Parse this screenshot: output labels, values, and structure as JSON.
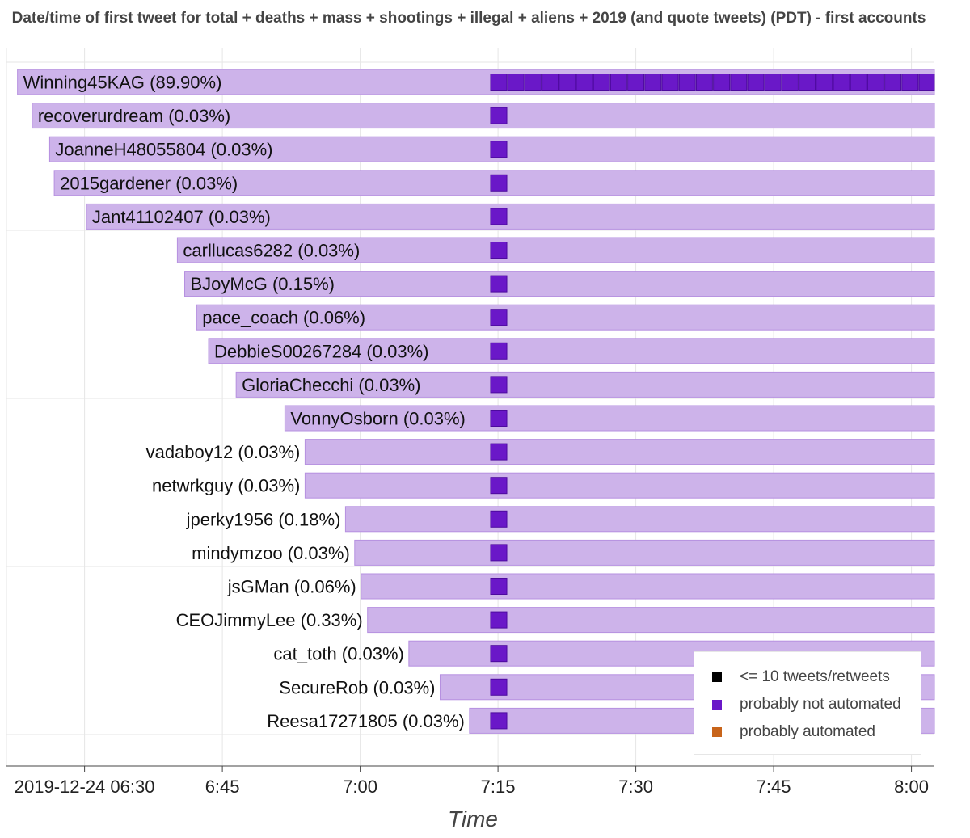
{
  "chart_data": {
    "type": "bar",
    "title": "Date/time of first tweet for total + deaths + mass + shootings + illegal + aliens + 2019 (and quote tweets) (PDT) - first accounts",
    "xlabel": "Time",
    "ylabel": "",
    "x_ticks": [
      "2019-12-24 06:30",
      "6:45",
      "7:00",
      "7:15",
      "7:30",
      "7:45",
      "8:00"
    ],
    "x_tick_minutes": [
      0,
      15,
      30,
      45,
      60,
      75,
      90
    ],
    "x_range_minutes": [
      -8.5,
      92.5
    ],
    "grid": true,
    "legend_position": "bottom-right",
    "colors": {
      "bar_fill": "#cdb3ea",
      "bar_stroke": "#b690e0",
      "marker_fill": "#6a18c8",
      "grid": "#e6e6e6",
      "axis": "#444444"
    },
    "series": [
      {
        "name": "<= 10 tweets/retweets",
        "color": "#000000"
      },
      {
        "name": "probably not automated",
        "color": "#6a18c8"
      },
      {
        "name": "probably automated",
        "color": "#c8641a"
      }
    ],
    "accounts": [
      {
        "label": "Winning45KAG (89.90%)",
        "first_tweet_min": -7.3,
        "tweets_start_min": 44.2,
        "marker_count": 27
      },
      {
        "label": "recoverurdream (0.03%)",
        "first_tweet_min": -5.7,
        "tweets_start_min": 44.2,
        "marker_count": 1
      },
      {
        "label": "JoanneH48055804 (0.03%)",
        "first_tweet_min": -3.8,
        "tweets_start_min": 44.2,
        "marker_count": 1
      },
      {
        "label": "2015gardener (0.03%)",
        "first_tweet_min": -3.3,
        "tweets_start_min": 44.2,
        "marker_count": 1
      },
      {
        "label": "Jant41102407 (0.03%)",
        "first_tweet_min": 0.2,
        "tweets_start_min": 44.2,
        "marker_count": 1
      },
      {
        "label": "carllucas6282 (0.03%)",
        "first_tweet_min": 10.1,
        "tweets_start_min": 44.2,
        "marker_count": 1
      },
      {
        "label": "BJoyMcG (0.15%)",
        "first_tweet_min": 10.9,
        "tweets_start_min": 44.2,
        "marker_count": 1
      },
      {
        "label": "pace_coach (0.06%)",
        "first_tweet_min": 12.2,
        "tweets_start_min": 44.2,
        "marker_count": 1
      },
      {
        "label": "DebbieS00267284 (0.03%)",
        "first_tweet_min": 13.5,
        "tweets_start_min": 44.2,
        "marker_count": 1
      },
      {
        "label": "GloriaChecchi (0.03%)",
        "first_tweet_min": 16.5,
        "tweets_start_min": 44.2,
        "marker_count": 1
      },
      {
        "label": "VonnyOsborn (0.03%)",
        "first_tweet_min": 21.8,
        "tweets_start_min": 44.2,
        "marker_count": 1
      },
      {
        "label": "vadaboy12 (0.03%)",
        "first_tweet_min": 24.0,
        "tweets_start_min": 44.2,
        "marker_count": 1
      },
      {
        "label": "netwrkguy (0.03%)",
        "first_tweet_min": 24.0,
        "tweets_start_min": 44.2,
        "marker_count": 1
      },
      {
        "label": "jperky1956 (0.18%)",
        "first_tweet_min": 28.4,
        "tweets_start_min": 44.2,
        "marker_count": 1
      },
      {
        "label": "mindymzoo (0.03%)",
        "first_tweet_min": 29.4,
        "tweets_start_min": 44.2,
        "marker_count": 1
      },
      {
        "label": "jsGMan (0.06%)",
        "first_tweet_min": 30.1,
        "tweets_start_min": 44.2,
        "marker_count": 1
      },
      {
        "label": "CEOJimmyLee (0.33%)",
        "first_tweet_min": 30.8,
        "tweets_start_min": 44.2,
        "marker_count": 1
      },
      {
        "label": "cat_toth (0.03%)",
        "first_tweet_min": 35.3,
        "tweets_start_min": 44.2,
        "marker_count": 1
      },
      {
        "label": "SecureRob (0.03%)",
        "first_tweet_min": 38.7,
        "tweets_start_min": 44.2,
        "marker_count": 1
      },
      {
        "label": "Reesa17271805 (0.03%)",
        "first_tweet_min": 41.9,
        "tweets_start_min": 44.2,
        "marker_count": 1
      }
    ]
  }
}
